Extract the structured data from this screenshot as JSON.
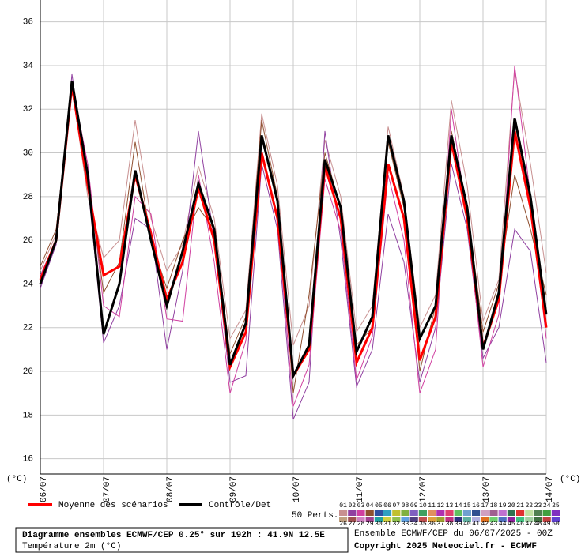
{
  "chart_data": {
    "type": "line",
    "y_unit": "(°C)",
    "y2_unit": "(°C)",
    "categories": [
      "06/07",
      null,
      null,
      null,
      "07/07",
      null,
      null,
      null,
      "08/07",
      null,
      null,
      null,
      "09/07",
      null,
      null,
      null,
      "10/07",
      null,
      null,
      null,
      "11/07",
      null,
      null,
      null,
      "12/07",
      null,
      null,
      null,
      "13/07",
      null,
      null,
      null,
      "14/07"
    ],
    "ylim": [
      15.3,
      37
    ],
    "yticks": [
      16,
      18,
      20,
      22,
      24,
      26,
      28,
      30,
      32,
      34,
      36
    ],
    "grid": true,
    "series": [
      {
        "name": "Moyenne des scénarios",
        "color": "#ff0000",
        "values": [
          24.2,
          26.0,
          33.1,
          28.5,
          24.4,
          24.8,
          29.0,
          26.3,
          23.3,
          25.0,
          28.4,
          26.0,
          20.2,
          21.8,
          30.0,
          27.0,
          19.8,
          21.0,
          29.4,
          27.0,
          20.4,
          22.0,
          29.5,
          27.0,
          20.5,
          22.5,
          30.5,
          27.0,
          21.1,
          23.3,
          31.0,
          27.5,
          22.0
        ]
      },
      {
        "name": "Contrôle/Det",
        "color": "#000000",
        "values": [
          24.0,
          26.0,
          33.3,
          29.0,
          21.7,
          24.0,
          29.2,
          26.0,
          23.0,
          25.5,
          28.6,
          26.5,
          20.3,
          22.2,
          30.8,
          27.8,
          19.8,
          21.2,
          29.7,
          27.5,
          20.9,
          22.5,
          30.8,
          27.8,
          21.5,
          23.0,
          30.8,
          27.5,
          21.0,
          23.6,
          31.6,
          28.0,
          22.6
        ]
      }
    ],
    "members_label": "50 Perts.",
    "members": [
      {
        "name": "01",
        "color": "#c89090",
        "values": [
          24.6,
          26.3,
          33.0,
          28.0,
          25.2,
          26.0,
          31.5,
          27.0,
          24.6,
          25.8,
          29.4,
          27.0,
          21.5,
          22.8,
          31.8,
          28.5,
          21.2,
          23.0,
          30.6,
          28.0,
          21.8,
          23.0,
          31.2,
          28.0,
          22.0,
          23.5,
          32.4,
          28.5,
          22.3,
          24.2,
          33.8,
          29.5,
          24.5
        ]
      },
      {
        "name": "02",
        "color": "#9040a0",
        "values": [
          23.8,
          25.8,
          33.6,
          28.6,
          21.3,
          23.0,
          27.0,
          26.5,
          21.0,
          24.6,
          31.0,
          26.0,
          19.5,
          19.8,
          29.5,
          26.5,
          17.8,
          19.5,
          31.0,
          26.0,
          19.3,
          21.0,
          27.2,
          25.0,
          19.5,
          22.0,
          29.5,
          26.5,
          20.6,
          22.0,
          26.5,
          25.5,
          20.4
        ]
      },
      {
        "name": "03",
        "color": "#d040a0",
        "values": [
          24.4,
          26.0,
          33.2,
          29.5,
          23.0,
          22.5,
          28.0,
          27.2,
          22.4,
          22.3,
          29.0,
          25.0,
          19.0,
          21.4,
          30.0,
          27.0,
          18.4,
          20.3,
          28.8,
          26.4,
          19.6,
          21.6,
          29.0,
          26.0,
          19.0,
          21.0,
          32.0,
          27.0,
          20.2,
          22.6,
          34.0,
          28.0,
          21.5
        ]
      },
      {
        "name": "04",
        "color": "#905030",
        "values": [
          24.8,
          26.5,
          32.8,
          29.0,
          23.6,
          25.0,
          30.5,
          26.0,
          23.8,
          26.0,
          27.5,
          26.5,
          20.8,
          22.5,
          31.5,
          28.0,
          19.0,
          23.5,
          30.0,
          27.5,
          21.2,
          22.0,
          30.5,
          27.5,
          20.0,
          23.0,
          31.0,
          27.5,
          21.8,
          24.0,
          29.0,
          26.5,
          23.5
        ]
      },
      {
        "name": "05",
        "color": "#3050a0"
      },
      {
        "name": "06",
        "color": "#30a0c0"
      },
      {
        "name": "07",
        "color": "#c0c030"
      },
      {
        "name": "08",
        "color": "#80b040"
      },
      {
        "name": "09",
        "color": "#8060c0"
      },
      {
        "name": "10",
        "color": "#40a060"
      },
      {
        "name": "11",
        "color": "#e09060"
      },
      {
        "name": "12",
        "color": "#b030b0"
      },
      {
        "name": "13",
        "color": "#e04070"
      },
      {
        "name": "14",
        "color": "#60c060"
      },
      {
        "name": "15",
        "color": "#70a0d0"
      },
      {
        "name": "16",
        "color": "#305090"
      },
      {
        "name": "17",
        "color": "#d0a0c0"
      },
      {
        "name": "18",
        "color": "#a06090"
      },
      {
        "name": "19",
        "color": "#c070d0"
      },
      {
        "name": "20",
        "color": "#307050"
      },
      {
        "name": "21",
        "color": "#e03030"
      },
      {
        "name": "22",
        "color": "#c0e0a0"
      },
      {
        "name": "23",
        "color": "#508050"
      },
      {
        "name": "24",
        "color": "#40a040"
      },
      {
        "name": "25",
        "color": "#8030c0"
      },
      {
        "name": "26",
        "color": "#c0a080"
      },
      {
        "name": "27",
        "color": "#a05050"
      },
      {
        "name": "28",
        "color": "#d080c0"
      },
      {
        "name": "29",
        "color": "#a04090"
      },
      {
        "name": "30",
        "color": "#20a0a0"
      },
      {
        "name": "31",
        "color": "#d0d040"
      },
      {
        "name": "32",
        "color": "#90c050"
      },
      {
        "name": "33",
        "color": "#60a0e0"
      },
      {
        "name": "34",
        "color": "#504080"
      },
      {
        "name": "35",
        "color": "#c05050"
      },
      {
        "name": "36",
        "color": "#e0a040"
      },
      {
        "name": "37",
        "color": "#a0a030"
      },
      {
        "name": "38",
        "color": "#c03080"
      },
      {
        "name": "39",
        "color": "#303080"
      },
      {
        "name": "40",
        "color": "#60b0a0"
      },
      {
        "name": "41",
        "color": "#b0b0e0"
      },
      {
        "name": "42",
        "color": "#e07020"
      },
      {
        "name": "43",
        "color": "#70d070"
      },
      {
        "name": "44",
        "color": "#5070c0"
      },
      {
        "name": "45",
        "color": "#9020a0"
      },
      {
        "name": "46",
        "color": "#40c080"
      },
      {
        "name": "47",
        "color": "#a0d0a0"
      },
      {
        "name": "48",
        "color": "#407040"
      },
      {
        "name": "49",
        "color": "#c04040"
      },
      {
        "name": "50",
        "color": "#6040d0"
      }
    ],
    "title": "Diagramme ensembles ECMWF/CEP 0.25° sur 192h : 41.9N 12.5E",
    "subtitle": "Température 2m (°C)",
    "run_info": "Ensemble ECMWF/CEP du 06/07/2025 - 00Z",
    "copyright": "Copyright 2025 Meteociel.fr - ECMWF"
  }
}
